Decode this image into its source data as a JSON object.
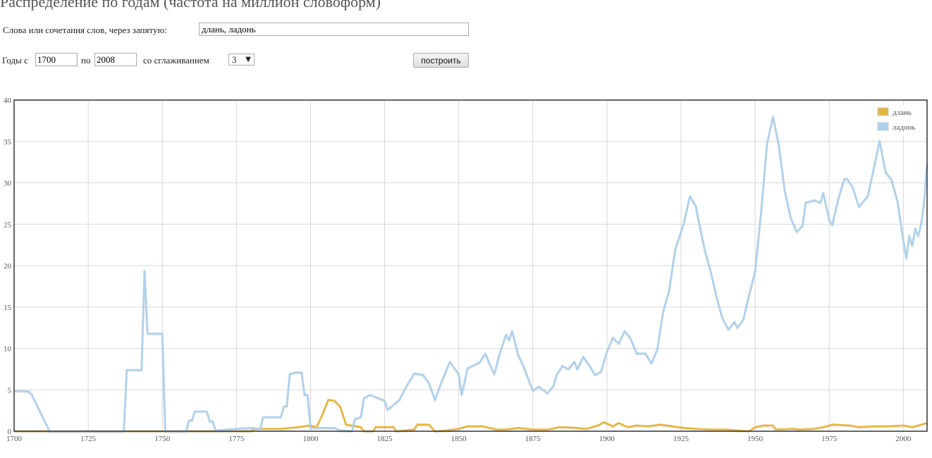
{
  "header": {
    "title": "Распределение по годам (частота на миллион словоформ)"
  },
  "form": {
    "words_label": "Слова или сочетания слов, через запятую:",
    "words_value": "длань, ладонь",
    "years_from_label": "Годы с",
    "years_from_value": "1700",
    "years_to_label": "по",
    "years_to_value": "2008",
    "smoothing_label": "со сглаживанием",
    "smoothing_value": "3",
    "build_label": "построить"
  },
  "chart_data": {
    "type": "line",
    "xlim": [
      1700,
      2008
    ],
    "ylim": [
      0,
      40
    ],
    "x_ticks": [
      1700,
      1725,
      1750,
      1775,
      1800,
      1825,
      1850,
      1875,
      1900,
      1925,
      1950,
      1975,
      2000
    ],
    "y_ticks": [
      0,
      5,
      10,
      15,
      20,
      25,
      30,
      35,
      40
    ],
    "grid": true,
    "legend_position": "top-right",
    "series": [
      {
        "name": "длань",
        "color": "#e8b53b",
        "points": [
          [
            1700,
            0
          ],
          [
            1780,
            0
          ],
          [
            1781,
            0.3
          ],
          [
            1790,
            0.3
          ],
          [
            1796,
            0.5
          ],
          [
            1800,
            0.7
          ],
          [
            1802,
            0.5
          ],
          [
            1804,
            2.0
          ],
          [
            1806,
            3.8
          ],
          [
            1808,
            3.7
          ],
          [
            1810,
            3.0
          ],
          [
            1812,
            0.8
          ],
          [
            1817,
            0.5
          ],
          [
            1818,
            0
          ],
          [
            1821,
            0
          ],
          [
            1822,
            0.5
          ],
          [
            1828,
            0.5
          ],
          [
            1829,
            0
          ],
          [
            1835,
            0.2
          ],
          [
            1836,
            0.8
          ],
          [
            1840,
            0.8
          ],
          [
            1842,
            0
          ],
          [
            1846,
            0.1
          ],
          [
            1850,
            0.3
          ],
          [
            1853,
            0.6
          ],
          [
            1858,
            0.6
          ],
          [
            1863,
            0.2
          ],
          [
            1866,
            0.2
          ],
          [
            1870,
            0.4
          ],
          [
            1875,
            0.2
          ],
          [
            1880,
            0.2
          ],
          [
            1884,
            0.5
          ],
          [
            1890,
            0.4
          ],
          [
            1893,
            0.3
          ],
          [
            1897,
            0.7
          ],
          [
            1899,
            1.1
          ],
          [
            1902,
            0.6
          ],
          [
            1904,
            1.0
          ],
          [
            1907,
            0.5
          ],
          [
            1910,
            0.7
          ],
          [
            1914,
            0.6
          ],
          [
            1918,
            0.8
          ],
          [
            1922,
            0.6
          ],
          [
            1926,
            0.4
          ],
          [
            1930,
            0.3
          ],
          [
            1935,
            0.2
          ],
          [
            1940,
            0.2
          ],
          [
            1944,
            0.1
          ],
          [
            1948,
            0
          ],
          [
            1950,
            0.5
          ],
          [
            1953,
            0.7
          ],
          [
            1956,
            0.7
          ],
          [
            1957,
            0.2
          ],
          [
            1963,
            0.3
          ],
          [
            1965,
            0.2
          ],
          [
            1970,
            0.3
          ],
          [
            1973,
            0.5
          ],
          [
            1976,
            0.8
          ],
          [
            1982,
            0.7
          ],
          [
            1985,
            0.5
          ],
          [
            1990,
            0.6
          ],
          [
            1995,
            0.6
          ],
          [
            2000,
            0.7
          ],
          [
            2003,
            0.5
          ],
          [
            2008,
            1.0
          ]
        ]
      },
      {
        "name": "ладонь",
        "color": "#aed1ec",
        "points": [
          [
            1700,
            4.9
          ],
          [
            1705,
            4.8
          ],
          [
            1706,
            4.4
          ],
          [
            1712,
            0
          ],
          [
            1737,
            0
          ],
          [
            1738,
            7.4
          ],
          [
            1743,
            7.4
          ],
          [
            1744,
            19.4
          ],
          [
            1745,
            11.8
          ],
          [
            1750,
            11.8
          ],
          [
            1751,
            0
          ],
          [
            1758,
            0
          ],
          [
            1759,
            1.3
          ],
          [
            1760,
            1.3
          ],
          [
            1761,
            2.4
          ],
          [
            1765,
            2.4
          ],
          [
            1766,
            1.2
          ],
          [
            1767,
            1.2
          ],
          [
            1768,
            0.1
          ],
          [
            1775,
            0.3
          ],
          [
            1780,
            0.4
          ],
          [
            1783,
            0.3
          ],
          [
            1784,
            1.7
          ],
          [
            1790,
            1.7
          ],
          [
            1791,
            3.0
          ],
          [
            1792,
            3.0
          ],
          [
            1793,
            6.9
          ],
          [
            1795,
            7.1
          ],
          [
            1797,
            7.1
          ],
          [
            1798,
            4.4
          ],
          [
            1799,
            4.4
          ],
          [
            1800,
            0.4
          ],
          [
            1808,
            0.4
          ],
          [
            1810,
            0.1
          ],
          [
            1814,
            0
          ],
          [
            1815,
            1.5
          ],
          [
            1817,
            1.7
          ],
          [
            1818,
            4.0
          ],
          [
            1820,
            4.4
          ],
          [
            1825,
            3.7
          ],
          [
            1826,
            2.6
          ],
          [
            1830,
            3.8
          ],
          [
            1832,
            5.2
          ],
          [
            1835,
            7.0
          ],
          [
            1838,
            6.8
          ],
          [
            1840,
            5.8
          ],
          [
            1842,
            3.8
          ],
          [
            1844,
            5.8
          ],
          [
            1847,
            8.4
          ],
          [
            1850,
            6.9
          ],
          [
            1851,
            4.4
          ],
          [
            1853,
            7.6
          ],
          [
            1857,
            8.3
          ],
          [
            1859,
            9.4
          ],
          [
            1860,
            8.5
          ],
          [
            1862,
            6.9
          ],
          [
            1864,
            9.6
          ],
          [
            1866,
            11.7
          ],
          [
            1867,
            11.0
          ],
          [
            1868,
            12.1
          ],
          [
            1870,
            9.3
          ],
          [
            1872,
            7.7
          ],
          [
            1875,
            4.9
          ],
          [
            1877,
            5.4
          ],
          [
            1880,
            4.6
          ],
          [
            1882,
            5.5
          ],
          [
            1883,
            6.8
          ],
          [
            1885,
            7.9
          ],
          [
            1887,
            7.5
          ],
          [
            1889,
            8.4
          ],
          [
            1890,
            7.5
          ],
          [
            1892,
            9.0
          ],
          [
            1894,
            8.0
          ],
          [
            1896,
            6.8
          ],
          [
            1898,
            7.2
          ],
          [
            1900,
            9.6
          ],
          [
            1902,
            11.3
          ],
          [
            1904,
            10.6
          ],
          [
            1906,
            12.1
          ],
          [
            1908,
            11.2
          ],
          [
            1910,
            9.4
          ],
          [
            1913,
            9.4
          ],
          [
            1915,
            8.2
          ],
          [
            1917,
            9.9
          ],
          [
            1919,
            14.5
          ],
          [
            1921,
            17.0
          ],
          [
            1923,
            21.9
          ],
          [
            1926,
            25.2
          ],
          [
            1928,
            28.4
          ],
          [
            1930,
            27.2
          ],
          [
            1931,
            25.3
          ],
          [
            1933,
            21.9
          ],
          [
            1935,
            19.3
          ],
          [
            1937,
            16.2
          ],
          [
            1939,
            13.6
          ],
          [
            1941,
            12.3
          ],
          [
            1943,
            13.2
          ],
          [
            1944,
            12.5
          ],
          [
            1946,
            13.5
          ],
          [
            1948,
            16.5
          ],
          [
            1950,
            19.3
          ],
          [
            1952,
            26.4
          ],
          [
            1954,
            34.7
          ],
          [
            1956,
            38.0
          ],
          [
            1958,
            34.5
          ],
          [
            1960,
            29.0
          ],
          [
            1962,
            25.8
          ],
          [
            1964,
            24.1
          ],
          [
            1966,
            24.8
          ],
          [
            1967,
            27.6
          ],
          [
            1970,
            27.9
          ],
          [
            1972,
            27.6
          ],
          [
            1973,
            28.8
          ],
          [
            1975,
            25.5
          ],
          [
            1976,
            24.9
          ],
          [
            1978,
            28.0
          ],
          [
            1980,
            30.4
          ],
          [
            1981,
            30.5
          ],
          [
            1983,
            29.4
          ],
          [
            1985,
            27.1
          ],
          [
            1988,
            28.4
          ],
          [
            1990,
            31.7
          ],
          [
            1992,
            35.1
          ],
          [
            1994,
            31.3
          ],
          [
            1996,
            30.4
          ],
          [
            1998,
            27.8
          ],
          [
            2000,
            23.0
          ],
          [
            2001,
            20.9
          ],
          [
            2002,
            23.6
          ],
          [
            2003,
            22.4
          ],
          [
            2004,
            24.5
          ],
          [
            2005,
            23.6
          ],
          [
            2006,
            25.0
          ],
          [
            2007,
            27.7
          ],
          [
            2008,
            32.3
          ]
        ]
      }
    ]
  }
}
